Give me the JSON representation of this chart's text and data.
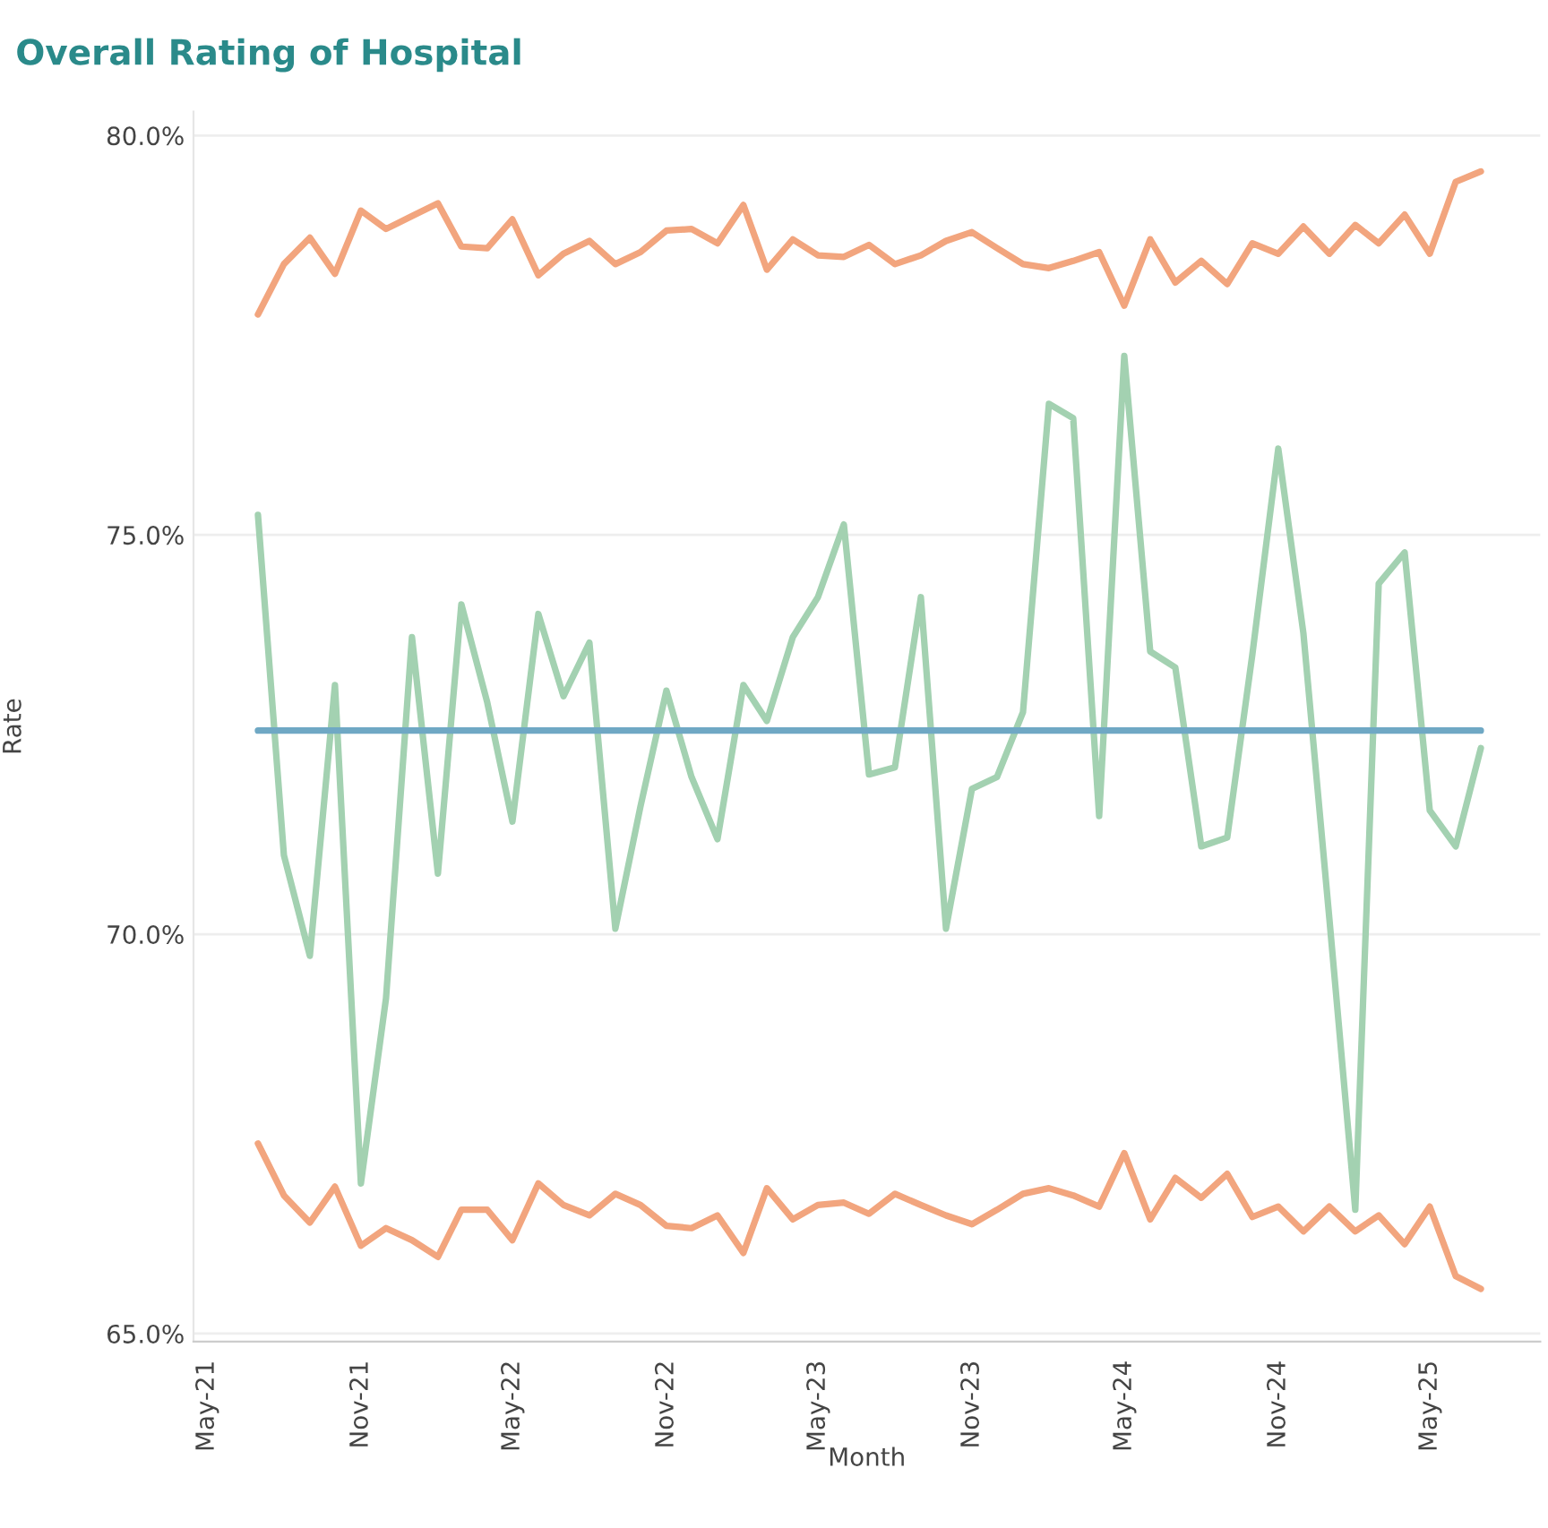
{
  "chart_data": {
    "type": "line",
    "title": "Overall Rating of Hospital",
    "xlabel": "Month",
    "ylabel": "Rate",
    "x": [
      "2021-07",
      "2021-08",
      "2021-09",
      "2021-10",
      "2021-11",
      "2021-12",
      "2022-01",
      "2022-02",
      "2022-03",
      "2022-04",
      "2022-05",
      "2022-06",
      "2022-07",
      "2022-08",
      "2022-09",
      "2022-10",
      "2022-11",
      "2022-12",
      "2023-01",
      "2023-02",
      "2023-03",
      "2023-04",
      "2023-05",
      "2023-06",
      "2023-07",
      "2023-08",
      "2023-09",
      "2023-10",
      "2023-11",
      "2023-12",
      "2024-01",
      "2024-02",
      "2024-03",
      "2024-04",
      "2024-05",
      "2024-06",
      "2024-07",
      "2024-08",
      "2024-09",
      "2024-10",
      "2024-11",
      "2024-12",
      "2025-01",
      "2025-02",
      "2025-03",
      "2025-04",
      "2025-05",
      "2025-06",
      "2025-07"
    ],
    "series": [
      {
        "color": "#f2a57e",
        "values": [
          77.76,
          78.39,
          78.72,
          78.27,
          79.06,
          78.83,
          78.99,
          79.15,
          78.61,
          78.59,
          78.95,
          78.25,
          78.52,
          78.68,
          78.39,
          78.54,
          78.81,
          78.83,
          78.65,
          79.13,
          78.32,
          78.7,
          78.5,
          78.48,
          78.63,
          78.39,
          78.5,
          78.68,
          78.79,
          78.59,
          78.39,
          78.34,
          78.43,
          78.54,
          77.87,
          78.7,
          78.16,
          78.43,
          78.14,
          78.65,
          78.52,
          78.86,
          78.52,
          78.88,
          78.65,
          79.01,
          78.52,
          79.42,
          79.55
        ]
      },
      {
        "color": "#a3d1b1",
        "values": [
          75.25,
          70.99,
          69.73,
          73.12,
          66.88,
          69.2,
          73.72,
          70.76,
          74.13,
          72.9,
          71.41,
          74.01,
          72.98,
          73.65,
          70.07,
          71.6,
          73.05,
          71.97,
          71.19,
          73.12,
          72.67,
          73.72,
          74.22,
          75.13,
          72.0,
          72.09,
          74.22,
          70.07,
          71.82,
          71.97,
          72.78,
          76.64,
          76.46,
          71.48,
          77.24,
          73.54,
          73.34,
          71.1,
          71.21,
          73.5,
          76.08,
          73.77,
          70.2,
          66.55,
          74.39,
          74.78,
          71.55,
          71.1,
          72.33
        ]
      },
      {
        "color": "#f2a57e",
        "values": [
          67.38,
          66.73,
          66.39,
          66.84,
          66.1,
          66.32,
          66.17,
          65.96,
          66.55,
          66.55,
          66.17,
          66.88,
          66.61,
          66.48,
          66.75,
          66.61,
          66.35,
          66.32,
          66.48,
          66.01,
          66.82,
          66.43,
          66.61,
          66.64,
          66.5,
          66.75,
          66.61,
          66.48,
          66.37,
          66.55,
          66.75,
          66.82,
          66.73,
          66.59,
          67.26,
          66.43,
          66.95,
          66.7,
          67.0,
          66.46,
          66.59,
          66.28,
          66.59,
          66.28,
          66.48,
          66.12,
          66.59,
          65.72,
          65.56
        ]
      },
      {
        "type": "line",
        "color": "#6fa8c4",
        "x": [
          "2021-07",
          "2025-07"
        ],
        "values": [
          72.55,
          72.55
        ]
      }
    ],
    "xlim": [
      "2021-04-15",
      "2025-09-10"
    ],
    "xticks": [
      {
        "value": "2021-05",
        "label": "May-21"
      },
      {
        "value": "2021-11",
        "label": "Nov-21"
      },
      {
        "value": "2022-05",
        "label": "May-22"
      },
      {
        "value": "2022-11",
        "label": "Nov-22"
      },
      {
        "value": "2023-05",
        "label": "May-23"
      },
      {
        "value": "2023-11",
        "label": "Nov-23"
      },
      {
        "value": "2024-05",
        "label": "May-24"
      },
      {
        "value": "2024-11",
        "label": "Nov-24"
      },
      {
        "value": "2025-05",
        "label": "May-25"
      }
    ],
    "ylim": [
      64.9,
      80.3
    ],
    "yticks": [
      {
        "value": 65,
        "label": "65.0%"
      },
      {
        "value": 70,
        "label": "70.0%"
      },
      {
        "value": 75,
        "label": "75.0%"
      },
      {
        "value": 80,
        "label": "80.0%"
      }
    ],
    "grid": "y",
    "line_style": "solid",
    "marker": "none"
  }
}
